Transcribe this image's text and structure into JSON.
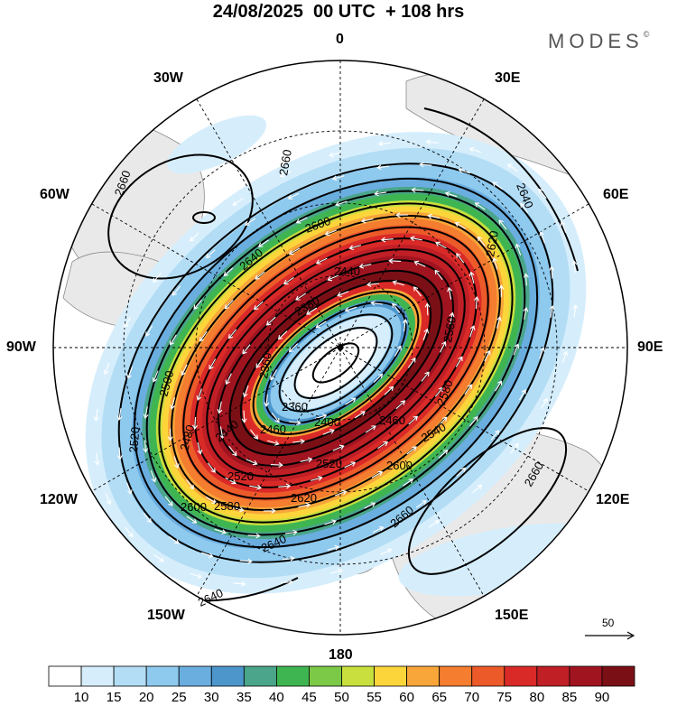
{
  "title": "24/08/2025  00 UTC  + 108 hrs",
  "brand": {
    "name": "MODES",
    "mark": "©"
  },
  "longitude_labels": {
    "lon_0": "0",
    "lon_30e": "30E",
    "lon_60e": "60E",
    "lon_90e": "90E",
    "lon_120e": "120E",
    "lon_150e": "150E",
    "lon_180": "180",
    "lon_150w": "150W",
    "lon_120w": "120W",
    "lon_90w": "90W",
    "lon_60w": "60W",
    "lon_30w": "30W"
  },
  "contour_labels": {
    "c2660a": "2660",
    "c2660b": "2660",
    "c2640a": "2640",
    "c2640b": "2640",
    "c2640c": "2640",
    "c2640d": "2640",
    "c2620a": "2620",
    "c2620b": "2620",
    "c2600a": "2600",
    "c2600b": "2600",
    "c2600c": "2600",
    "c2580a": "2580",
    "c2580b": "2580",
    "c2560": "2560",
    "c2540": "2540",
    "c2520a": "2520",
    "c2520b": "2520",
    "c2520c": "2520",
    "c2500": "2500",
    "c2480": "2480",
    "c2460a": "2460",
    "c2460b": "2460",
    "c2440a": "2440",
    "c2440b": "2440",
    "c2400": "2400",
    "c2380": "2380",
    "c2360a": "2360",
    "c2360b": "2360",
    "c2660c": "2660",
    "c2660d": "2660"
  },
  "vector_scale": {
    "value": "50"
  },
  "colorbar": {
    "ticks": [
      "10",
      "15",
      "20",
      "25",
      "30",
      "35",
      "40",
      "45",
      "50",
      "55",
      "60",
      "65",
      "70",
      "75",
      "80",
      "85",
      "90"
    ],
    "colors": [
      "#ffffff",
      "#d6eefc",
      "#b3ddf5",
      "#8ec9ee",
      "#6aaee0",
      "#4d96cc",
      "#4aa58a",
      "#3fb552",
      "#7cc847",
      "#c8df3e",
      "#fcd53b",
      "#f8a63a",
      "#f47d30",
      "#ec5a2a",
      "#d92a28",
      "#c01f26",
      "#a01420",
      "#7a1016"
    ]
  },
  "colors": {
    "land": "#e9e9e9",
    "coast": "#8a8a8a",
    "contour": "#000000",
    "arrow": "#ffffff"
  }
}
